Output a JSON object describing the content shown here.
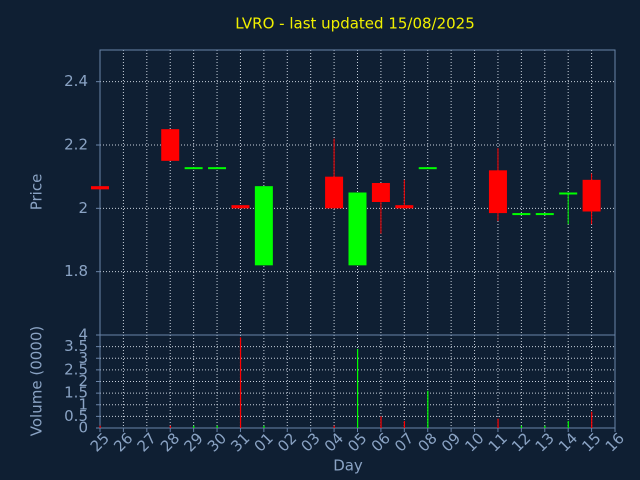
{
  "chart_data": [
    {
      "type": "candlestick",
      "title": "LVRO - last updated 15/08/2025",
      "ylabel": "Price",
      "open": [
        2.07,
        null,
        null,
        2.25,
        2.13,
        2.13,
        2.01,
        1.82,
        null,
        null,
        2.1,
        1.82,
        2.08,
        2.01,
        2.13,
        null,
        null,
        2.12,
        1.985,
        1.985,
        2.05,
        2.09,
        null
      ],
      "high": [
        2.07,
        null,
        null,
        2.25,
        2.13,
        2.13,
        2.01,
        2.07,
        null,
        null,
        2.22,
        2.05,
        2.08,
        2.09,
        2.13,
        null,
        null,
        2.19,
        1.985,
        1.985,
        2.05,
        2.11,
        null
      ],
      "low": [
        2.06,
        null,
        null,
        2.15,
        2.13,
        2.13,
        2.0,
        1.82,
        null,
        null,
        2.0,
        1.82,
        1.92,
        2.0,
        2.13,
        null,
        null,
        1.96,
        1.985,
        1.985,
        1.95,
        1.95,
        null
      ],
      "close": [
        2.06,
        null,
        null,
        2.15,
        2.13,
        2.13,
        2.0,
        2.07,
        null,
        null,
        2.0,
        2.05,
        2.02,
        2.0,
        2.13,
        null,
        null,
        1.985,
        1.985,
        1.985,
        2.05,
        1.99,
        null
      ],
      "up_color": "#00ff00",
      "down_color": "#ff0000",
      "ylim": [
        1.6,
        2.5
      ],
      "yticks": [
        1.8,
        2,
        2.2,
        2.4
      ],
      "grid": true
    },
    {
      "type": "bar",
      "ylabel": "Volume (0000)",
      "xlabel": "Day",
      "categories": [
        "25",
        "26",
        "27",
        "28",
        "29",
        "30",
        "31",
        "01",
        "02",
        "03",
        "04",
        "05",
        "06",
        "07",
        "08",
        "09",
        "10",
        "11",
        "12",
        "13",
        "14",
        "15",
        "16"
      ],
      "values": [
        0.1,
        null,
        null,
        0.1,
        0.1,
        0.1,
        3.9,
        0.1,
        null,
        null,
        0.1,
        3.4,
        0.5,
        0.3,
        1.6,
        null,
        null,
        0.4,
        0.1,
        0.1,
        0.3,
        0.7,
        null
      ],
      "ylim": [
        0,
        4
      ],
      "yticks": [
        0,
        0.5,
        1,
        1.5,
        2,
        2.5,
        3,
        3.5,
        4
      ],
      "grid": true
    }
  ]
}
